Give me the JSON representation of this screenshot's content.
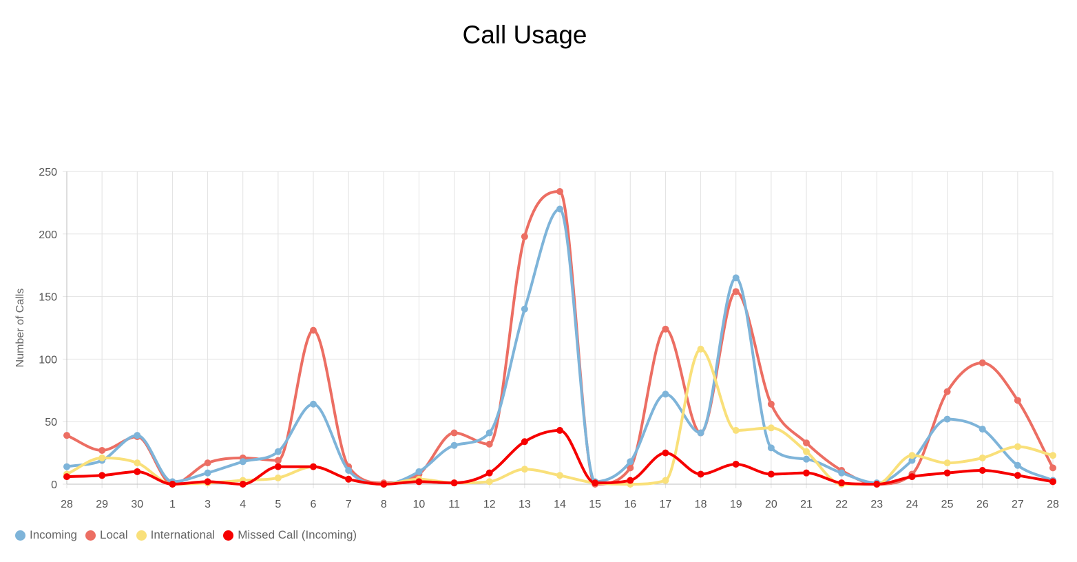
{
  "chart_data": {
    "type": "line",
    "title": "Call Usage",
    "xlabel": "",
    "ylabel": "Number of Calls",
    "ylim": [
      0,
      250
    ],
    "yticks": [
      0,
      50,
      100,
      150,
      200,
      250
    ],
    "grid": true,
    "legend_position": "bottom-left",
    "categories": [
      "28",
      "29",
      "30",
      "1",
      "3",
      "4",
      "5",
      "6",
      "7",
      "8",
      "10",
      "11",
      "12",
      "13",
      "14",
      "15",
      "16",
      "17",
      "18",
      "19",
      "20",
      "21",
      "22",
      "23",
      "24",
      "25",
      "26",
      "27",
      "28"
    ],
    "series": [
      {
        "name": "Incoming",
        "color": "#7eb4d9",
        "values": [
          14,
          19,
          39,
          2,
          9,
          18,
          26,
          64,
          11,
          0,
          10,
          31,
          41,
          140,
          220,
          2,
          18,
          72,
          41,
          165,
          29,
          20,
          9,
          1,
          19,
          52,
          44,
          15,
          3
        ]
      },
      {
        "name": "Local",
        "color": "#ec6e63",
        "values": [
          39,
          27,
          38,
          0,
          17,
          21,
          19,
          123,
          14,
          1,
          8,
          41,
          32,
          198,
          234,
          0,
          13,
          124,
          41,
          154,
          64,
          33,
          11,
          0,
          8,
          74,
          97,
          67,
          13
        ]
      },
      {
        "name": "International",
        "color": "#f9e07a",
        "values": [
          8,
          21,
          17,
          0,
          1,
          3,
          5,
          14,
          4,
          0,
          4,
          1,
          2,
          12,
          7,
          1,
          0,
          3,
          108,
          43,
          45,
          26,
          0,
          0,
          23,
          17,
          21,
          30,
          23
        ]
      },
      {
        "name": "Missed Call (Incoming)",
        "color": "#f60000",
        "values": [
          6,
          7,
          10,
          0,
          2,
          0,
          14,
          14,
          4,
          0,
          2,
          1,
          9,
          34,
          43,
          1,
          3,
          25,
          8,
          16,
          8,
          9,
          1,
          0,
          6,
          9,
          11,
          7,
          2
        ]
      }
    ]
  }
}
